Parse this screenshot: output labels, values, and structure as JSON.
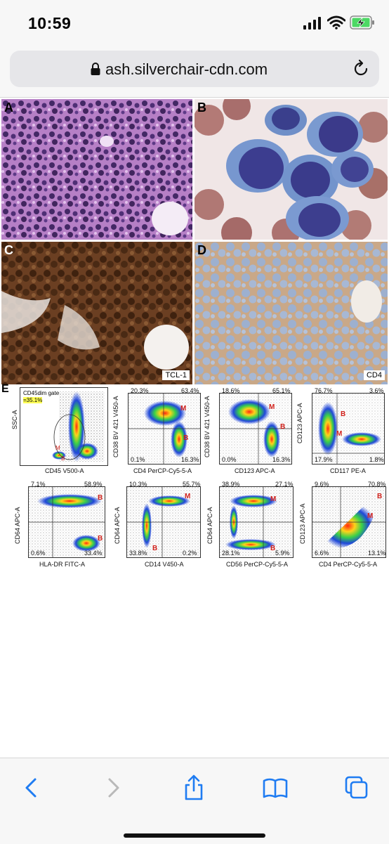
{
  "status": {
    "time": "10:59"
  },
  "browser": {
    "url": "ash.silverchair-cdn.com"
  },
  "figure": {
    "panels": {
      "A": {
        "label": "A"
      },
      "B": {
        "label": "B"
      },
      "C": {
        "label": "C",
        "tag": "TCL-1"
      },
      "D": {
        "label": "D",
        "tag": "CD4"
      },
      "E": {
        "label": "E"
      }
    },
    "gate": {
      "name": "CD45dim gate",
      "value": "=35.1%"
    },
    "plots": [
      {
        "xlabel": "CD45 V500-A",
        "ylabel": "SSC-A"
      },
      {
        "xlabel": "CD4 PerCP-Cy5-5-A",
        "ylabel": "CD38 BV 421 V450-A",
        "q": [
          "20.3%",
          "63.4%",
          "0.1%",
          "16.3%"
        ]
      },
      {
        "xlabel": "CD123 APC-A",
        "ylabel": "CD38 BV 421 V450-A",
        "q": [
          "18.6%",
          "65.1%",
          "0.0%",
          "16.3%"
        ]
      },
      {
        "xlabel": "CD117 PE-A",
        "ylabel": "CD123 APC-A",
        "q": [
          "76.7%",
          "3.6%",
          "17.9%",
          "1.8%"
        ]
      },
      {
        "xlabel": "HLA-DR FITC-A",
        "ylabel": "CD64 APC-A",
        "q": [
          "7.1%",
          "58.9%",
          "0.6%",
          "33.4%"
        ]
      },
      {
        "xlabel": "CD14 V450-A",
        "ylabel": "CD64 APC-A",
        "q": [
          "10.3%",
          "55.7%",
          "33.8%",
          "0.2%"
        ]
      },
      {
        "xlabel": "CD56 PerCP-Cy5-5-A",
        "ylabel": "CD64 APC-A",
        "q": [
          "38.9%",
          "27.1%",
          "28.1%",
          "5.9%"
        ]
      },
      {
        "xlabel": "CD4 PerCP-Cy5-5-A",
        "ylabel": "CD123 APC-A",
        "q": [
          "9.6%",
          "70.8%",
          "6.6%",
          "13.1%"
        ]
      }
    ],
    "markers": {
      "m": "M",
      "b": "B"
    }
  },
  "toolbar": {
    "items": [
      "back-icon",
      "forward-icon",
      "share-icon",
      "bookmarks-icon",
      "tabs-icon"
    ]
  }
}
